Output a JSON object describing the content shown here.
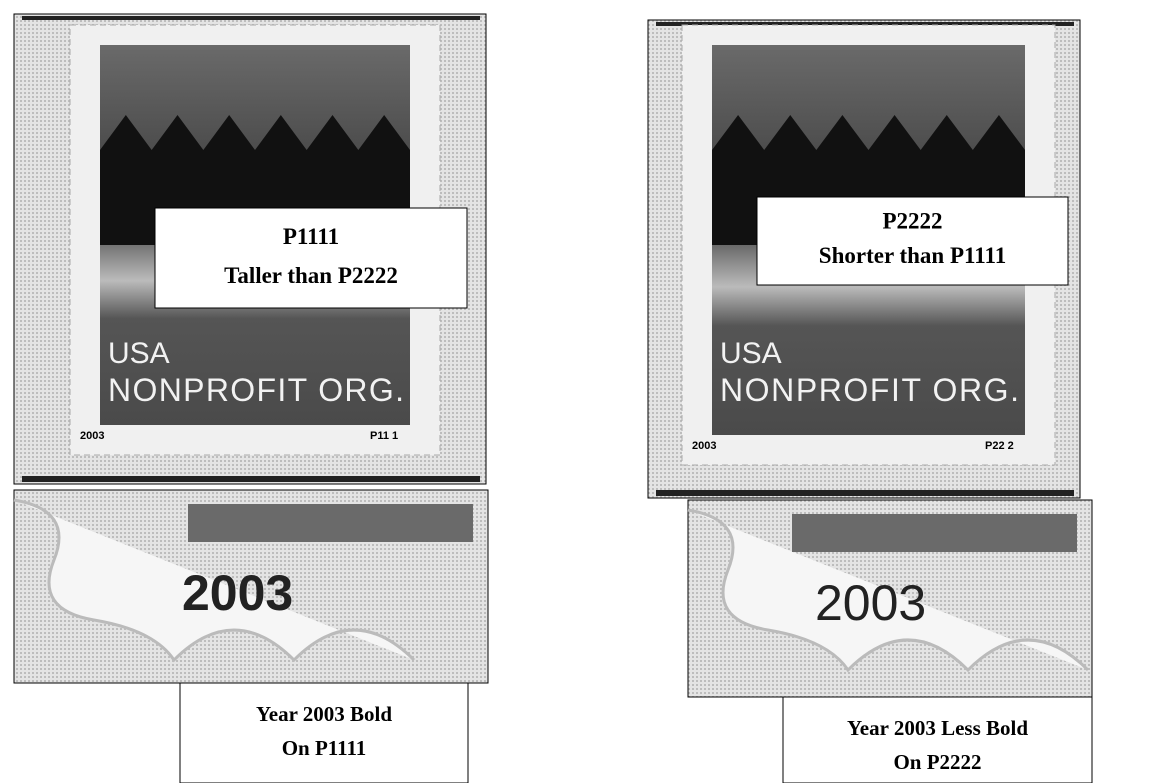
{
  "panels": [
    {
      "callout": [
        "P1111",
        "Taller than P2222"
      ],
      "stamp_text": [
        "USA",
        "NONPROFIT ORG."
      ],
      "stamp_year": "2003",
      "plate": "P11 1",
      "zoom_year": "2003",
      "caption": [
        "Year 2003 Bold",
        "On P1111"
      ]
    },
    {
      "callout": [
        "P2222",
        "Shorter than P1111"
      ],
      "stamp_text": [
        "USA",
        "NONPROFIT ORG."
      ],
      "stamp_year": "2003",
      "plate": "P22 2",
      "zoom_year": "2003",
      "caption": [
        "Year 2003 Less Bold",
        "On P2222"
      ]
    }
  ]
}
